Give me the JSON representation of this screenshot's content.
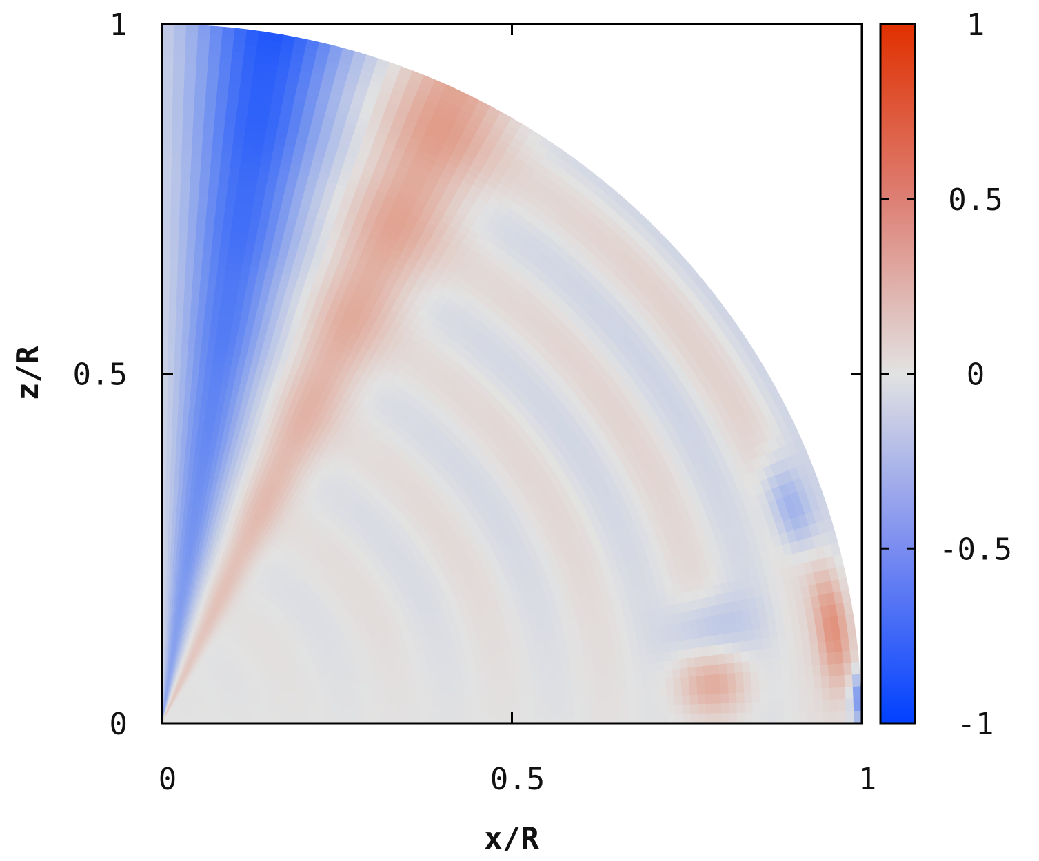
{
  "chart_data": {
    "type": "heatmap",
    "title": "",
    "xlabel": "x/R",
    "ylabel": "z/R",
    "xlim": [
      0,
      1
    ],
    "ylim": [
      0,
      1
    ],
    "x_ticks": [
      {
        "value": 0,
        "label": "0"
      },
      {
        "value": 0.5,
        "label": "0.5"
      },
      {
        "value": 1,
        "label": "1"
      }
    ],
    "y_ticks": [
      {
        "value": 0,
        "label": "0"
      },
      {
        "value": 0.5,
        "label": "0.5"
      },
      {
        "value": 1,
        "label": "1"
      }
    ],
    "colorbar": {
      "range": [
        -1,
        1
      ],
      "ticks": [
        {
          "value": 1,
          "label": "1"
        },
        {
          "value": 0.5,
          "label": "0.5"
        },
        {
          "value": 0,
          "label": "0"
        },
        {
          "value": -0.5,
          "label": "-0.5"
        },
        {
          "value": -1,
          "label": "-1"
        }
      ],
      "colors": {
        "min": "#0040ff",
        "mid": "#e0e0e0",
        "max": "#e03000"
      }
    },
    "domain_shape": "quarter disk, r/R <= 1",
    "field_features": [
      {
        "region": "near polar axis, theta 2-20 deg from z-axis",
        "value": -0.8
      },
      {
        "region": "band at theta ~ 20-30 deg",
        "value": 0.35
      },
      {
        "region": "outer rim near equator",
        "value": 0.4
      },
      {
        "region": "blob near x=0.78, z=0.05",
        "value": 0.25
      },
      {
        "region": "background",
        "value": 0.0
      }
    ]
  }
}
